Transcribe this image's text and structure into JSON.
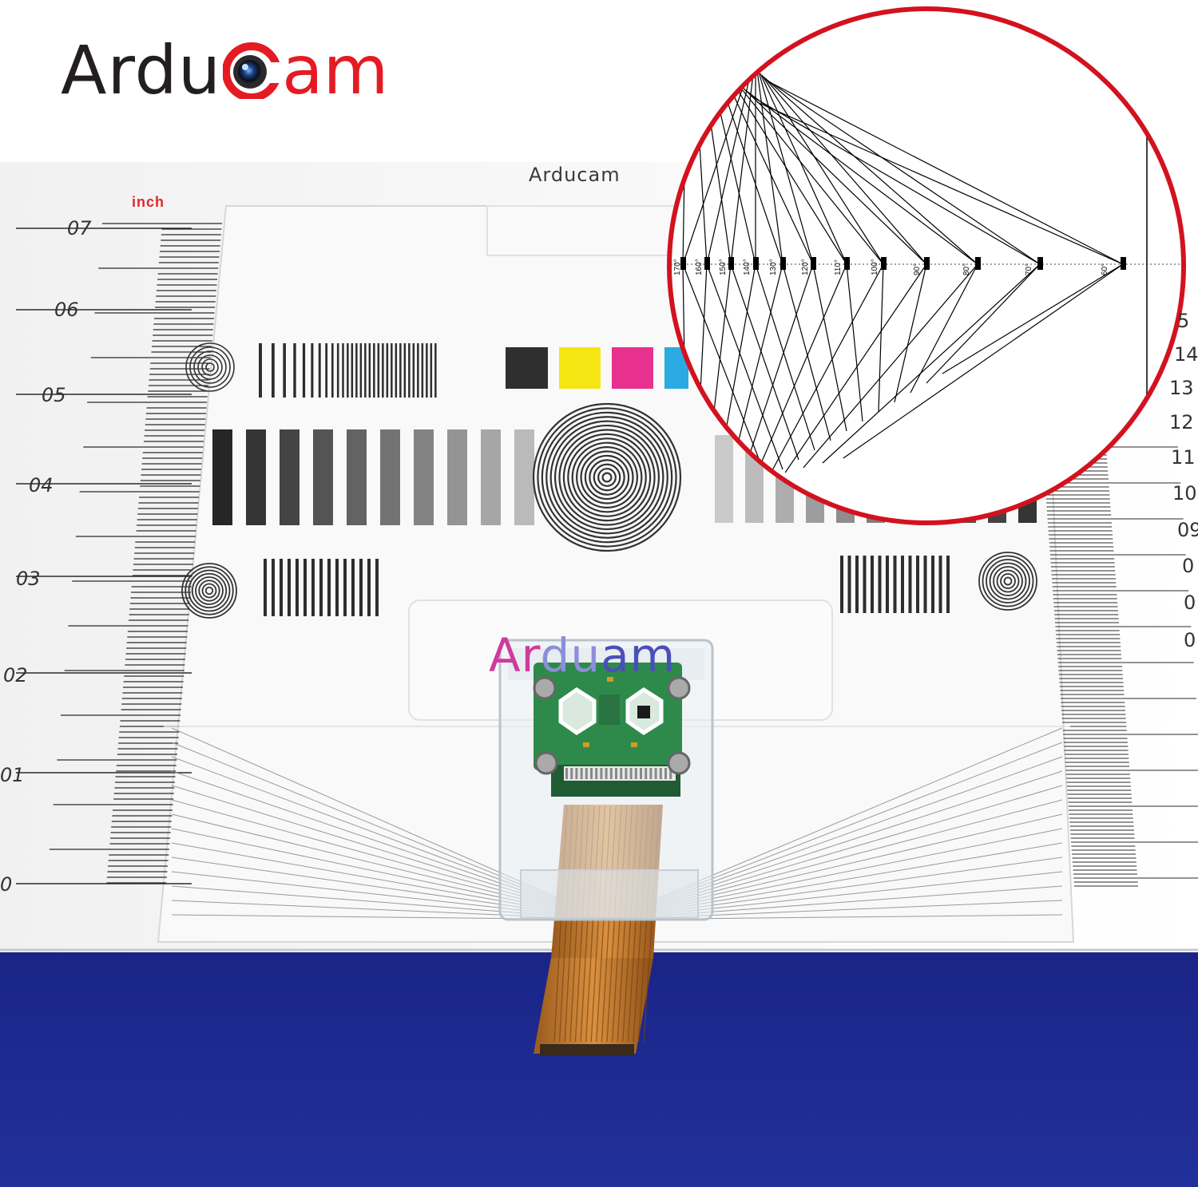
{
  "brand": {
    "dark": "Ardu",
    "red": "am"
  },
  "chart_header": "Arducam",
  "unit_label": "inch",
  "brand_overlay": {
    "a": "Ar",
    "b": "du",
    "c": "am"
  },
  "left_ruler_labels": [
    "07",
    "06",
    "05",
    "04",
    "03",
    "02",
    "01",
    "0"
  ],
  "right_ruler_labels": [
    "5",
    "14",
    "13",
    "12",
    "11",
    "10",
    "09",
    "0",
    "0",
    "0"
  ],
  "angle_labels": [
    "170°",
    "160°",
    "150°",
    "140°",
    "130°",
    "120°",
    "110°",
    "100°",
    "90°",
    "80°",
    "70°",
    "60°"
  ],
  "colors": {
    "brand_red": "#e51b23",
    "brand_dark": "#231f20",
    "backdrop": "#1b2a8e",
    "swatch_black": "#2f2f2f",
    "swatch_yellow": "#f5e614",
    "swatch_magenta": "#e8318e",
    "swatch_cyan": "#2aaae2",
    "cable": "#c9782c",
    "pcb": "#2e8a4a"
  },
  "icons": [
    "camera-lens-icon"
  ]
}
